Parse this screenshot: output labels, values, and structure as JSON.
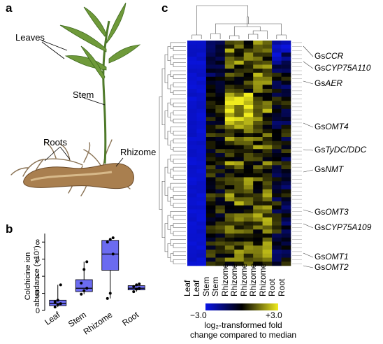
{
  "panels": {
    "a": {
      "letter": "a",
      "labels": {
        "leaves": "Leaves",
        "stem": "Stem",
        "roots": "Roots",
        "rhizome": "Rhizome"
      }
    },
    "b": {
      "letter": "b"
    },
    "c": {
      "letter": "c",
      "gene_labels": [
        {
          "prefix": "Gs",
          "name": "CCR"
        },
        {
          "prefix": "Gs",
          "name": "CYP75A110"
        },
        {
          "prefix": "Gs",
          "name": "AER"
        },
        {
          "prefix": "Gs",
          "name": "OMT4"
        },
        {
          "prefix": "Gs",
          "name": "TyDC/DDC"
        },
        {
          "prefix": "Gs",
          "name": "NMT"
        },
        {
          "prefix": "Gs",
          "name": "OMT3"
        },
        {
          "prefix": "Gs",
          "name": "CYP75A109"
        },
        {
          "prefix": "Gs",
          "name": "OMT1"
        },
        {
          "prefix": "Gs",
          "name": "OMT2"
        }
      ],
      "columns": [
        "Leaf",
        "Leaf",
        "Stem",
        "Stem",
        "Rhizome",
        "Rhizome",
        "Rhizome",
        "Rhizome",
        "Rhizome",
        "Root",
        "Root"
      ],
      "scale": {
        "min_label": "−3.0",
        "max_label": "+3.0",
        "caption_line1": "log₂-transformed fold",
        "caption_line2": "change compared to median",
        "colors": {
          "low": "#0a14e6",
          "mid": "#000000",
          "high": "#f0ec1e"
        }
      }
    }
  },
  "chart_data": {
    "type": "box",
    "categories": [
      "Leaf",
      "Stem",
      "Rhizome",
      "Root"
    ],
    "ylabel_line1": "Colchicine ion",
    "ylabel_line2": "abundance (×10⁷)",
    "ylim": [
      0,
      9
    ],
    "yticks": [
      0,
      2,
      4,
      6,
      8
    ],
    "box_color": "#6b6bf0",
    "boxes": [
      {
        "category": "Leaf",
        "q1": 0.55,
        "median": 0.8,
        "q3": 1.2,
        "min": 0.4,
        "max": 3.0,
        "points": [
          0.4,
          0.7,
          0.8,
          1.0,
          1.2,
          3.0
        ]
      },
      {
        "category": "Stem",
        "q1": 2.2,
        "median": 2.6,
        "q3": 3.6,
        "min": 1.9,
        "max": 5.7,
        "points": [
          1.9,
          2.3,
          2.6,
          3.2,
          4.8,
          5.7
        ]
      },
      {
        "category": "Rhizome",
        "q1": 4.7,
        "median": 6.6,
        "q3": 8.2,
        "min": 1.4,
        "max": 8.5,
        "points": [
          1.4,
          2.0,
          6.6,
          8.0,
          8.3,
          8.5
        ]
      },
      {
        "category": "Root",
        "q1": 2.4,
        "median": 2.6,
        "q3": 2.9,
        "min": 2.2,
        "max": 3.1,
        "points": [
          2.2,
          2.5,
          2.6,
          2.8,
          3.0,
          3.1
        ]
      }
    ]
  }
}
